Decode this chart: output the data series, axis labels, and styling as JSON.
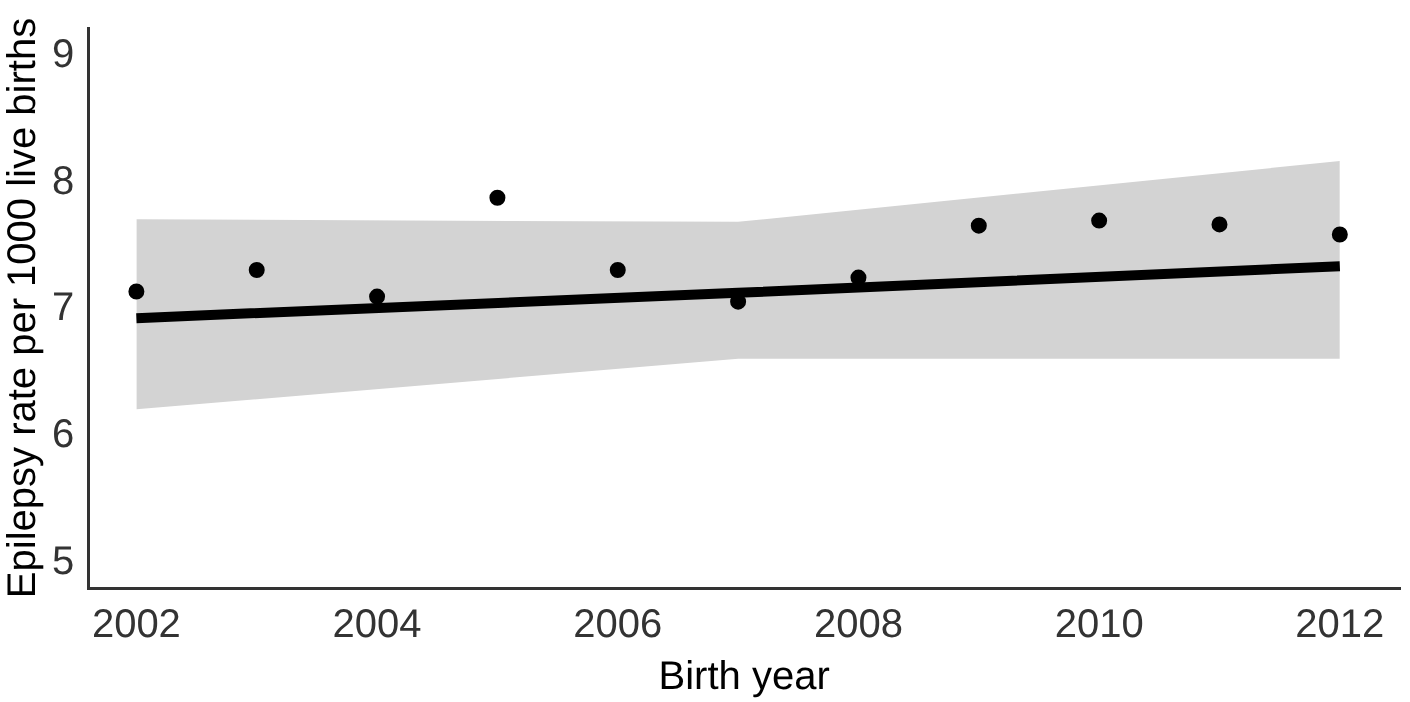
{
  "chart_data": {
    "type": "scatter",
    "xlabel": "Birth year",
    "ylabel": "Epilepsy rate per 1000 live births",
    "xlim": [
      2001.6,
      2012.5
    ],
    "xticks": [
      2002,
      2004,
      2006,
      2008,
      2010,
      2012
    ],
    "ylim": [
      4.8,
      9.22
    ],
    "yticks": [
      5,
      6,
      7,
      8,
      9
    ],
    "grid": false,
    "legend": false,
    "series": [
      {
        "type": "scatter",
        "color": "#000000",
        "marker": "circle",
        "x": [
          2002,
          2003,
          2004,
          2005,
          2006,
          2007,
          2008,
          2009,
          2010,
          2011,
          2012
        ],
        "values": [
          7.14,
          7.31,
          7.1,
          7.88,
          7.31,
          7.06,
          7.25,
          7.66,
          7.7,
          7.67,
          7.59
        ]
      },
      {
        "type": "line",
        "color": "#000000",
        "marker": "none",
        "line_style": "solid",
        "x": [
          2002,
          2007,
          2012
        ],
        "values": [
          6.93,
          7.13,
          7.34
        ],
        "lower": [
          6.21,
          6.61,
          6.61
        ],
        "upper": [
          7.71,
          7.69,
          8.17
        ]
      }
    ]
  }
}
